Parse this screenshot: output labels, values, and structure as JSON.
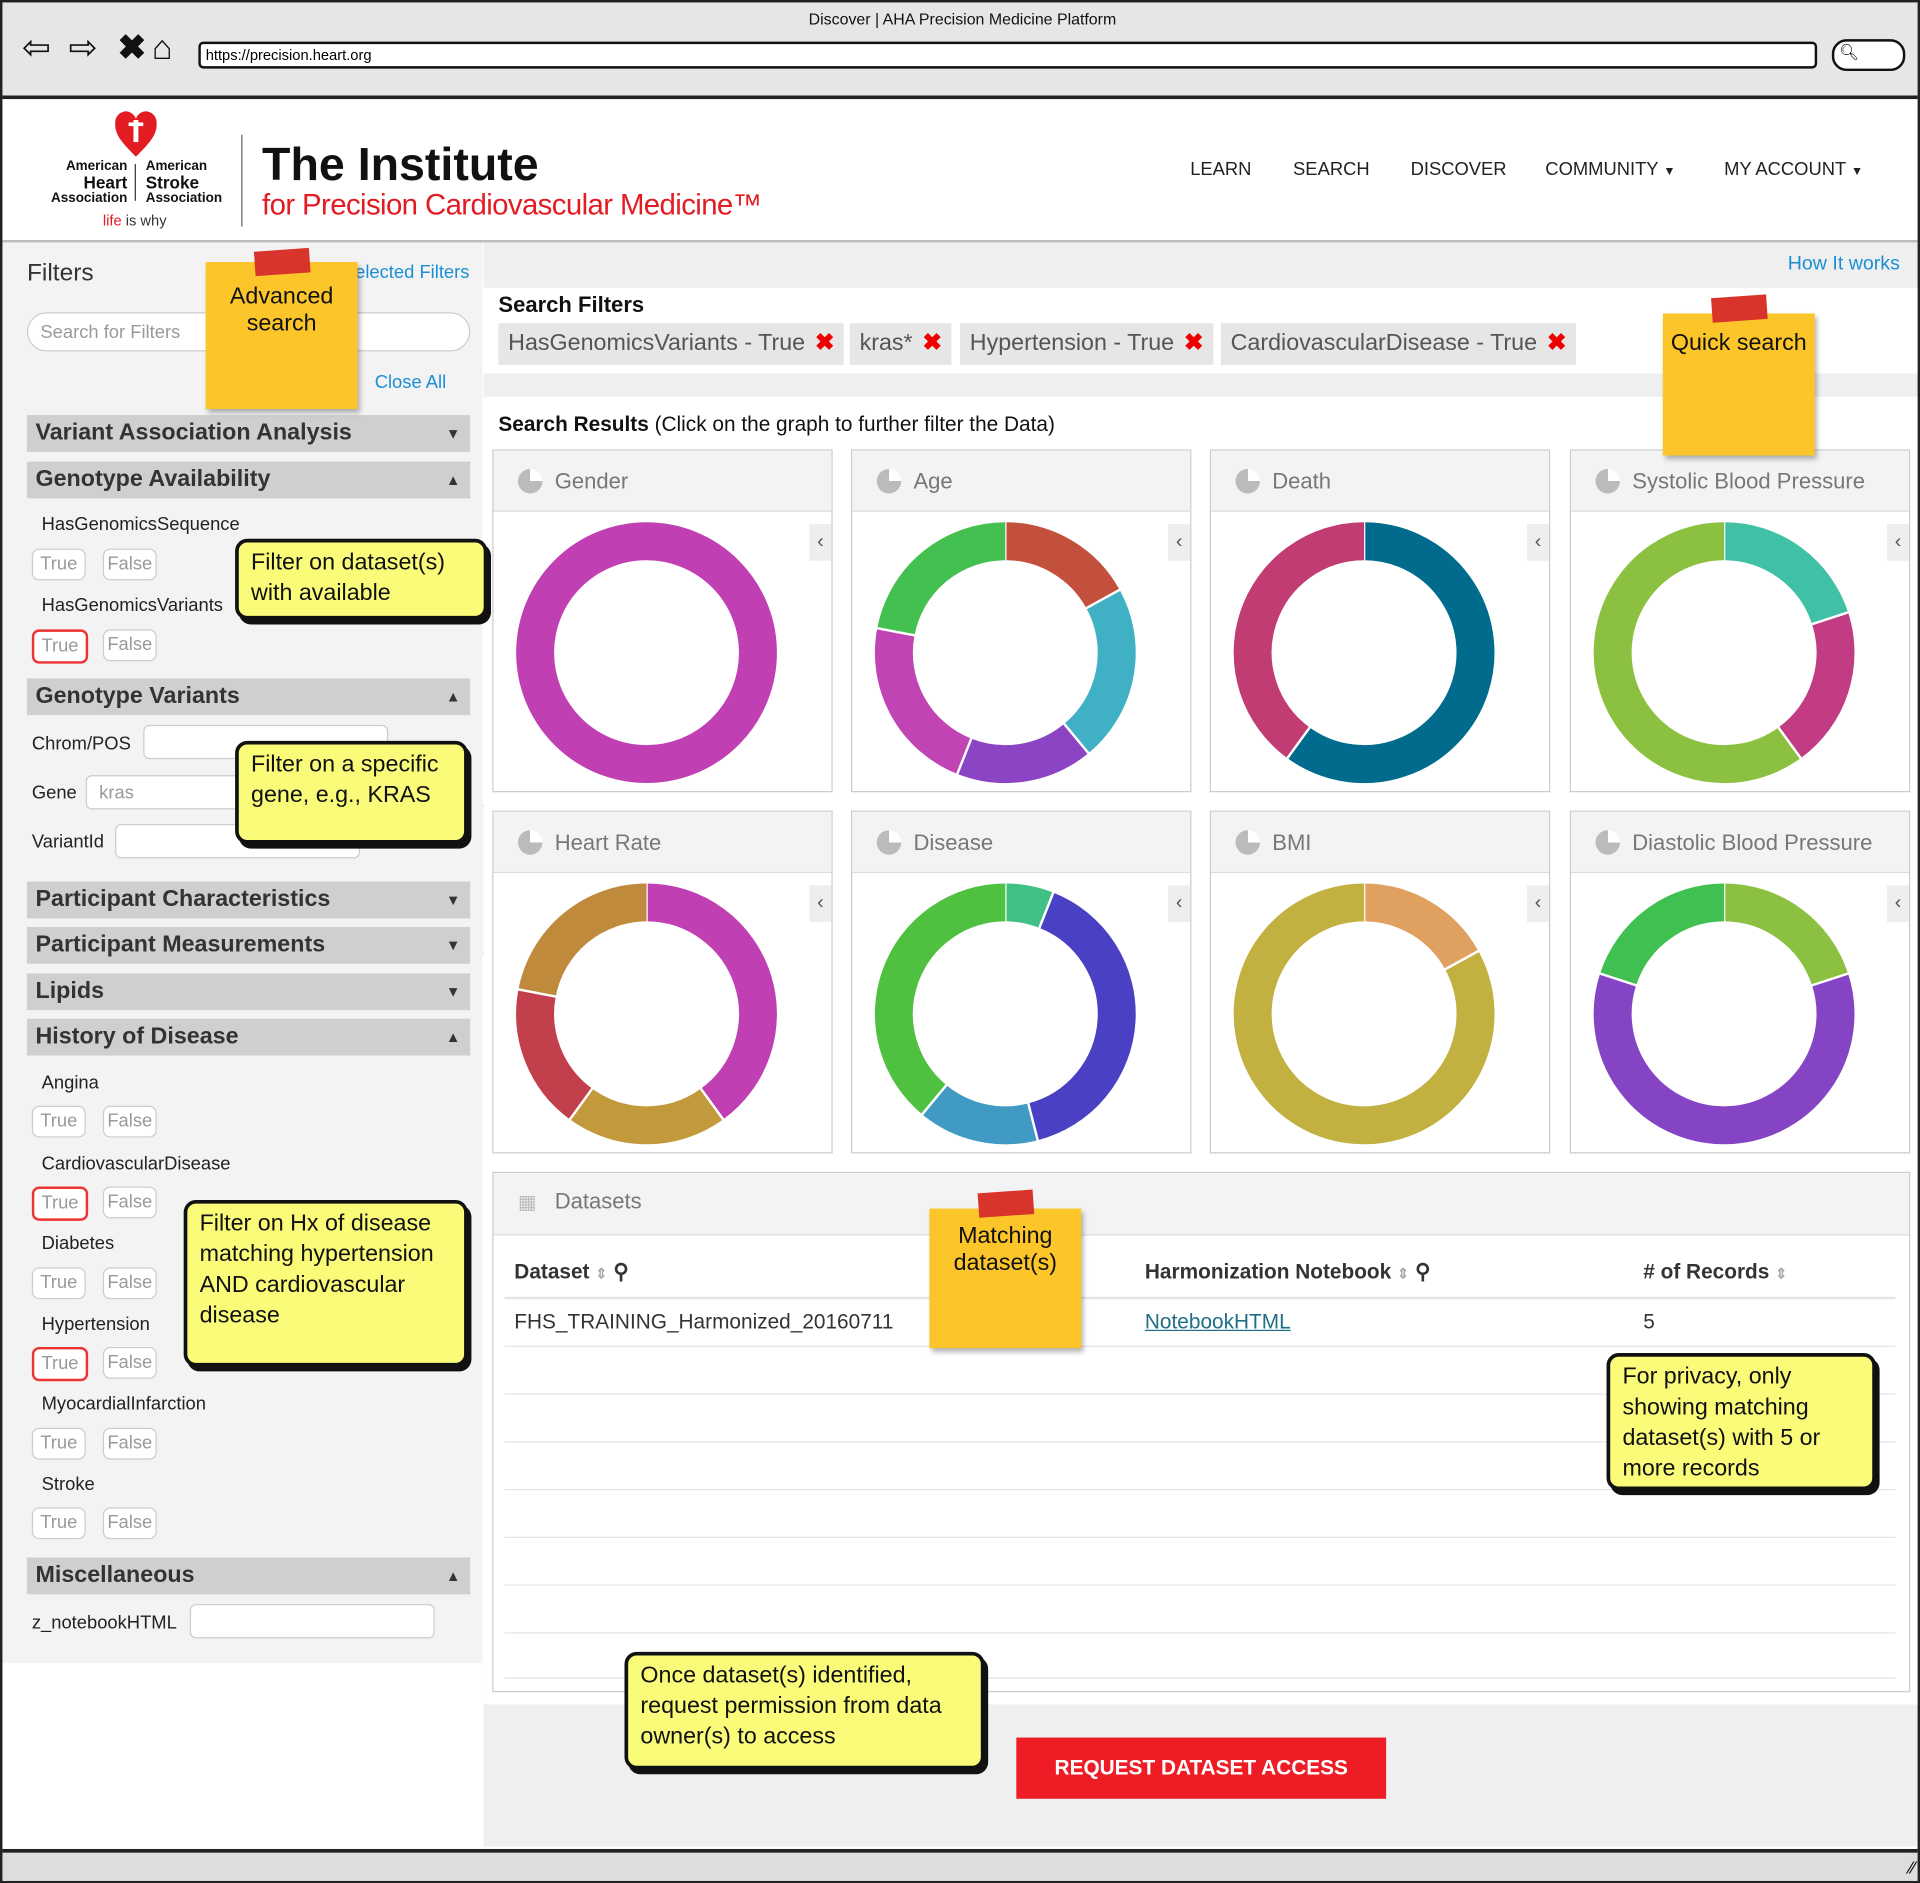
{
  "browser": {
    "title": "Discover | AHA Precision Medicine Platform",
    "url": "https://precision.heart.org"
  },
  "header": {
    "logo_left": [
      "American",
      "Heart",
      "Association"
    ],
    "logo_right": [
      "American",
      "Stroke",
      "Association"
    ],
    "tagline_red": "life",
    "tagline_rest": "is why",
    "title": "The Institute",
    "subtitle": "for Precision Cardiovascular Medicine™",
    "menu": [
      "LEARN",
      "SEARCH",
      "DISCOVER",
      "COMMUNITY",
      "MY ACCOUNT"
    ]
  },
  "sidebar": {
    "title": "Filters",
    "selected_filters": "Selected Filters",
    "search_placeholder": "Search for Filters",
    "close_all": "Close All",
    "sections": {
      "variant": "Variant Association Analysis",
      "genotype_avail": "Genotype Availability",
      "genotype_variants": "Genotype Variants",
      "participant_char": "Participant Characteristics",
      "participant_meas": "Participant Measurements",
      "lipids": "Lipids",
      "history": "History of Disease",
      "misc": "Miscellaneous"
    },
    "true_label": "True",
    "false_label": "False",
    "fields": {
      "has_seq": "HasGenomicsSequence",
      "has_var": "HasGenomicsVariants",
      "chrom": "Chrom/POS",
      "gene": "Gene",
      "gene_value": "kras",
      "variant_id": "VariantId",
      "angina": "Angina",
      "cvd": "CardiovascularDisease",
      "diabetes": "Diabetes",
      "hypertension": "Hypertension",
      "mi": "MyocardialInfarction",
      "stroke": "Stroke",
      "notebook": "z_notebookHTML"
    }
  },
  "main": {
    "how_it_works": "How It works",
    "search_filters_title": "Search Filters",
    "chips": [
      "HasGenomicsVariants - True",
      "kras*",
      "Hypertension - True",
      "CardiovascularDisease - True"
    ],
    "results_title": "Search Results",
    "results_hint": "(Click on the graph to further filter the Data)",
    "datasets": {
      "title": "Datasets",
      "col_dataset": "Dataset",
      "col_notebook": "Harmonization Notebook",
      "col_records": "# of Records",
      "rows": [
        {
          "dataset": "FHS_TRAINING_Harmonized_20160711",
          "notebook": "NotebookHTML",
          "records": "5"
        }
      ]
    },
    "request_button": "REQUEST DATASET ACCESS"
  },
  "annotations": {
    "advanced_search": "Advanced search",
    "quick_search": "Quick search",
    "matching": "Matching dataset(s)",
    "filter_dataset": "Filter on dataset(s) with available",
    "filter_gene": "Filter on a specific gene, e.g., KRAS",
    "filter_hx": "Filter on Hx of disease matching hypertension AND cardiovascular disease",
    "privacy": "For privacy, only showing matching dataset(s) with 5 or more records",
    "request": "Once dataset(s) identified, request permission from data owner(s) to access"
  },
  "chart_data": [
    {
      "type": "pie",
      "title": "Gender",
      "slices": [
        {
          "value": 1.0,
          "color": "#c040b4"
        }
      ]
    },
    {
      "type": "pie",
      "title": "Age",
      "slices": [
        {
          "value": 0.17,
          "color": "#c2503c"
        },
        {
          "value": 0.22,
          "color": "#40b0c4"
        },
        {
          "value": 0.17,
          "color": "#8a44c4"
        },
        {
          "value": 0.22,
          "color": "#c044b4"
        },
        {
          "value": 0.22,
          "color": "#44c050"
        }
      ]
    },
    {
      "type": "pie",
      "title": "Death",
      "slices": [
        {
          "value": 0.6,
          "color": "#006b8c"
        },
        {
          "value": 0.4,
          "color": "#c23c74"
        }
      ]
    },
    {
      "type": "pie",
      "title": "Systolic Blood Pressure",
      "slices": [
        {
          "value": 0.2,
          "color": "#40c0a4"
        },
        {
          "value": 0.2,
          "color": "#c23c84"
        },
        {
          "value": 0.6,
          "color": "#8cc040"
        }
      ]
    },
    {
      "type": "pie",
      "title": "Heart Rate",
      "slices": [
        {
          "value": 0.4,
          "color": "#c040b4"
        },
        {
          "value": 0.2,
          "color": "#c29a3c"
        },
        {
          "value": 0.18,
          "color": "#c2404c"
        },
        {
          "value": 0.22,
          "color": "#c08a3c"
        }
      ]
    },
    {
      "type": "pie",
      "title": "Disease",
      "slices": [
        {
          "value": 0.06,
          "color": "#40c084"
        },
        {
          "value": 0.4,
          "color": "#4a40c4"
        },
        {
          "value": 0.15,
          "color": "#409ac4"
        },
        {
          "value": 0.39,
          "color": "#50c040"
        }
      ]
    },
    {
      "type": "pie",
      "title": "BMI",
      "slices": [
        {
          "value": 0.17,
          "color": "#e0a060"
        },
        {
          "value": 0.83,
          "color": "#c2b040"
        }
      ]
    },
    {
      "type": "pie",
      "title": "Diastolic Blood Pressure",
      "slices": [
        {
          "value": 0.2,
          "color": "#8cc040"
        },
        {
          "value": 0.6,
          "color": "#8444c4"
        },
        {
          "value": 0.2,
          "color": "#40c050"
        }
      ]
    }
  ]
}
